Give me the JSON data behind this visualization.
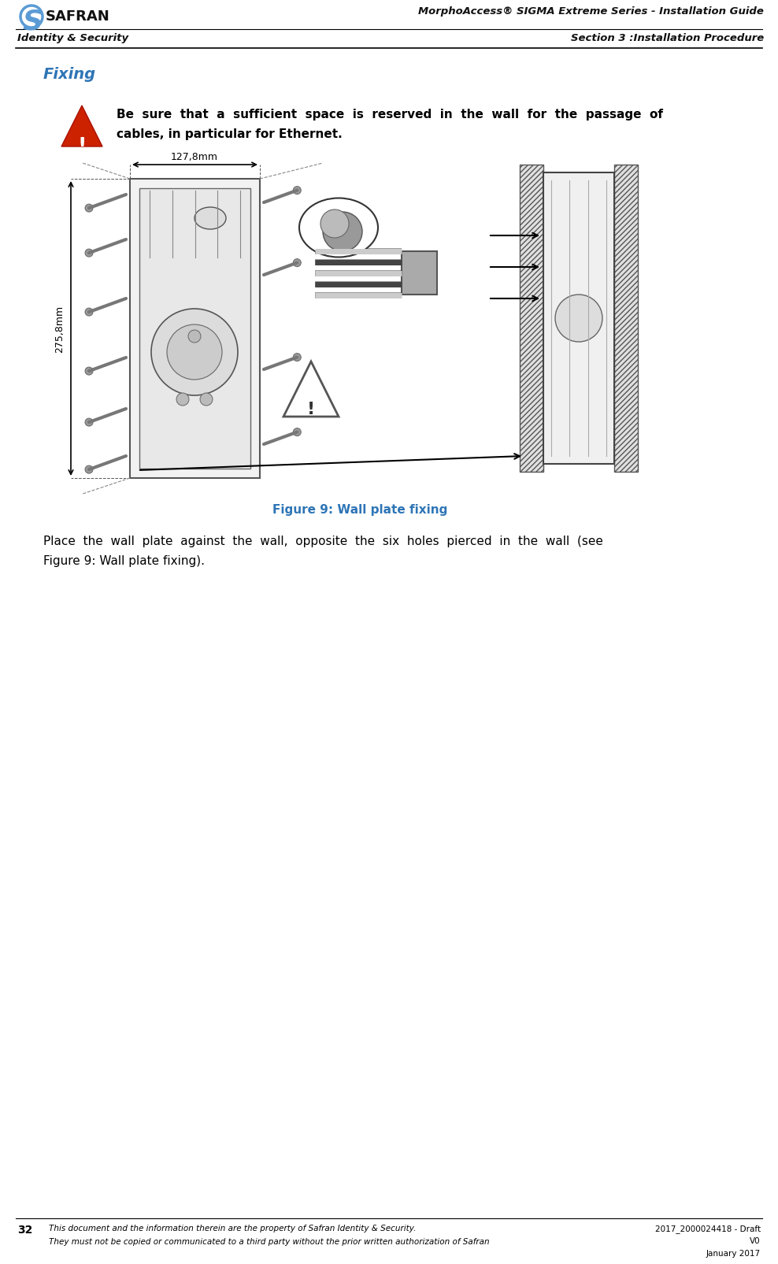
{
  "page_width": 9.88,
  "page_height": 16.06,
  "dpi": 100,
  "bg_color": "#ffffff",
  "header_title_right": "MorphoAccess® SIGMA Extreme Series - Installation Guide",
  "header_subtitle_left": "Identity & Security",
  "header_subtitle_right": "Section 3 :Installation Procedure",
  "section_title": "Fixing",
  "section_title_color": "#2E75B6",
  "warning_line1": "Be  sure  that  a  sufficient  space  is  reserved  in  the  wall  for  the  passage  of",
  "warning_line2": "cables, in particular for Ethernet.",
  "figure_caption": "Figure 9: Wall plate fixing",
  "figure_caption_color": "#2E75B6",
  "body_line1": "Place  the  wall  plate  against  the  wall,  opposite  the  six  holes  pierced  in  the  wall  (see",
  "body_line2": "Figure 9: Wall plate fixing).",
  "footer_num": "32",
  "footer_text1": "This document and the information therein are the property of Safran Identity & Security.",
  "footer_text2": "They must not be copied or communicated to a third party without the prior written authorization of Safran",
  "footer_right1": "2017_2000024418 - Draft",
  "footer_right2": "V0",
  "footer_right3": "January 2017",
  "dim_w": "127,8mm",
  "dim_h": "275,8mm",
  "blue": "#2E75B6",
  "logo_blue": "#5B9BD5",
  "gray_screw": "#888888",
  "dark": "#333333"
}
